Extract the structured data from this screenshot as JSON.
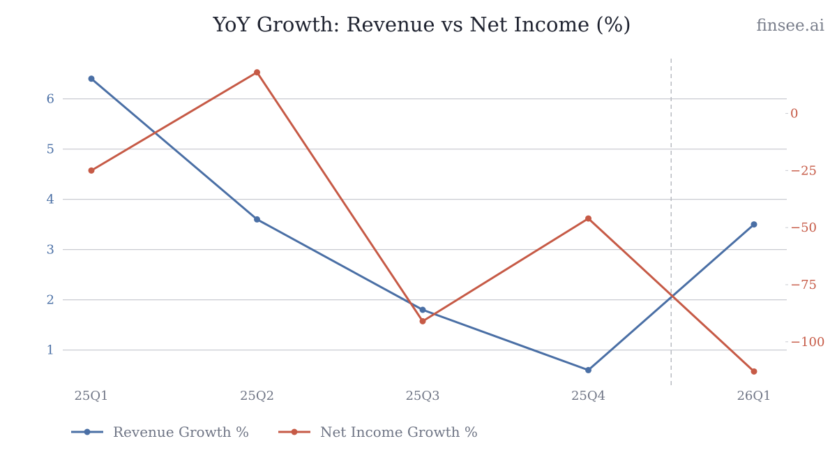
{
  "title": "YoY Growth: Revenue vs Net Income (%)",
  "watermark": "finsee.ai",
  "chart_data": {
    "type": "line",
    "title": "YoY Growth: Revenue vs Net Income (%)",
    "categories": [
      "25Q1",
      "25Q2",
      "25Q3",
      "25Q4",
      "26Q1"
    ],
    "series": [
      {
        "name": "Revenue Growth %",
        "axis": "left",
        "color": "#4a6fa5",
        "values": [
          6.4,
          3.6,
          1.8,
          0.6,
          3.5
        ]
      },
      {
        "name": "Net Income Growth %",
        "axis": "right",
        "color": "#c65a46",
        "values": [
          -25,
          18,
          -91,
          -46,
          -113
        ]
      }
    ],
    "y_left": {
      "ticks": [
        1,
        2,
        3,
        4,
        5,
        6
      ],
      "range": [
        0.3,
        6.8
      ],
      "color": "#4a6fa5"
    },
    "y_right": {
      "ticks": [
        0,
        -25,
        -50,
        -75,
        -100
      ],
      "tick_labels": [
        "0",
        "−25",
        "−50",
        "−75",
        "−100"
      ],
      "range": [
        -119,
        24
      ],
      "color": "#c65a46"
    },
    "grid": true,
    "divider_between": [
      "25Q4",
      "26Q1"
    ],
    "legend_position": "bottom-left"
  }
}
